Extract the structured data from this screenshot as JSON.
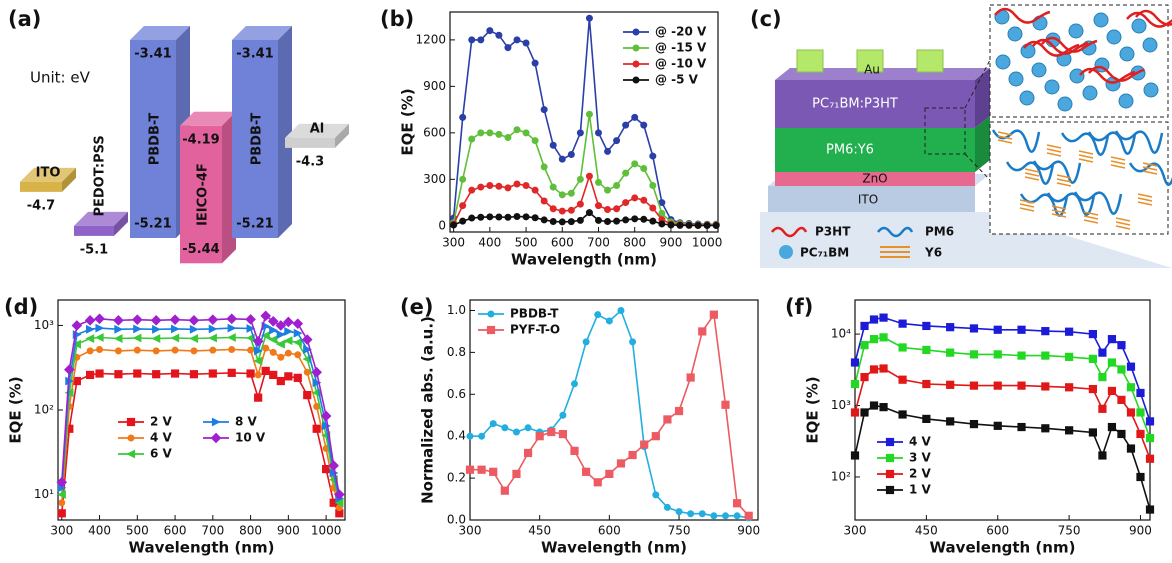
{
  "chart_data": [
    {
      "type": "energy-diagram",
      "panel": "(a)",
      "unit_label": "Unit: eV",
      "layers": [
        {
          "name": "ITO",
          "level": -4.7,
          "color": "#d8b348"
        },
        {
          "name": "PEDOT:PSS",
          "level": -5.1,
          "color": "#9063c8"
        },
        {
          "name": "PBDB-T",
          "lumo": -3.41,
          "homo": -5.21,
          "color": "#6f82d8"
        },
        {
          "name": "IEICO-4F",
          "lumo": -4.19,
          "homo": -5.44,
          "color": "#e2629e"
        },
        {
          "name": "PBDB-T",
          "lumo": -3.41,
          "homo": -5.21,
          "color": "#6f82d8"
        },
        {
          "name": "Al",
          "level": -4.3,
          "color": "#cfcfcf"
        }
      ]
    },
    {
      "type": "line",
      "panel": "(b)",
      "x_label": "Wavelength (nm)",
      "y_label": "EQE (%)",
      "xlim": [
        290,
        1030
      ],
      "xticks": [
        300,
        400,
        500,
        600,
        700,
        800,
        900,
        1000
      ],
      "ylim": [
        -40,
        1380
      ],
      "yticks": [
        0,
        300,
        600,
        900,
        1200
      ],
      "legend": "upper right",
      "x": [
        300,
        325,
        350,
        375,
        400,
        425,
        450,
        475,
        500,
        525,
        550,
        575,
        600,
        625,
        650,
        675,
        700,
        725,
        750,
        775,
        800,
        825,
        850,
        875,
        900,
        925,
        950,
        975,
        1000,
        1025
      ],
      "series": [
        {
          "name": "@ -20 V",
          "color": "#2b3fa8",
          "marker": "circle",
          "values": [
            50,
            700,
            1200,
            1200,
            1260,
            1230,
            1150,
            1200,
            1180,
            1050,
            750,
            520,
            430,
            460,
            600,
            1340,
            600,
            480,
            550,
            650,
            700,
            650,
            450,
            150,
            40,
            20,
            15,
            12,
            10,
            10
          ]
        },
        {
          "name": "@ -15 V",
          "color": "#5fbf3a",
          "marker": "circle",
          "values": [
            20,
            300,
            560,
            600,
            600,
            590,
            570,
            620,
            600,
            550,
            380,
            250,
            200,
            210,
            300,
            720,
            280,
            230,
            260,
            340,
            400,
            370,
            260,
            80,
            25,
            15,
            10,
            8,
            8,
            8
          ]
        },
        {
          "name": "@ -10 V",
          "color": "#e02828",
          "marker": "circle",
          "values": [
            10,
            130,
            230,
            250,
            260,
            255,
            245,
            270,
            260,
            230,
            160,
            110,
            95,
            100,
            140,
            320,
            130,
            105,
            110,
            150,
            180,
            165,
            115,
            40,
            12,
            8,
            6,
            5,
            5,
            5
          ]
        },
        {
          "name": "@ -5 V",
          "color": "#111111",
          "marker": "circle",
          "values": [
            5,
            30,
            50,
            55,
            58,
            57,
            55,
            60,
            58,
            52,
            38,
            28,
            25,
            27,
            35,
            85,
            35,
            28,
            30,
            38,
            45,
            42,
            30,
            12,
            5,
            3,
            3,
            2,
            2,
            2
          ]
        }
      ]
    },
    {
      "type": "device-diagram",
      "panel": "(c)",
      "layers": [
        "Au",
        "PC₇₁BM:P3HT",
        "PM6:Y6",
        "ZnO",
        "ITO"
      ],
      "materials": [
        "P3HT",
        "PM6",
        "PC₇₁BM",
        "Y6"
      ]
    },
    {
      "type": "line",
      "panel": "(d)",
      "x_label": "Wavelength (nm)",
      "y_label": "EQE (%)",
      "log_y": true,
      "xlim": [
        290,
        1050
      ],
      "xticks": [
        300,
        400,
        500,
        600,
        700,
        800,
        900,
        1000
      ],
      "ylim": [
        5,
        2000
      ],
      "yticks": [
        {
          "value": 10,
          "label": "10¹"
        },
        {
          "value": 100,
          "label": "10²"
        },
        {
          "value": 1000,
          "label": "10³"
        }
      ],
      "legend": "center left",
      "x": [
        300,
        320,
        340,
        375,
        400,
        450,
        500,
        550,
        600,
        650,
        700,
        750,
        800,
        820,
        840,
        860,
        880,
        900,
        925,
        950,
        975,
        1000,
        1020,
        1035
      ],
      "series": [
        {
          "name": "2 V",
          "color": "#e3141c",
          "marker": "square",
          "values": [
            6,
            60,
            220,
            260,
            270,
            265,
            270,
            265,
            270,
            265,
            270,
            275,
            270,
            140,
            290,
            260,
            220,
            250,
            240,
            150,
            60,
            20,
            8,
            6
          ]
        },
        {
          "name": "4 V",
          "color": "#f07a1a",
          "marker": "circle",
          "values": [
            8,
            110,
            420,
            500,
            520,
            500,
            510,
            500,
            510,
            500,
            510,
            520,
            510,
            260,
            540,
            480,
            420,
            470,
            450,
            280,
            110,
            35,
            12,
            7
          ]
        },
        {
          "name": "6 V",
          "color": "#39c839",
          "marker": "triangle-left",
          "values": [
            10,
            160,
            600,
            700,
            720,
            700,
            710,
            700,
            710,
            700,
            710,
            720,
            710,
            380,
            760,
            680,
            600,
            660,
            630,
            400,
            160,
            50,
            15,
            8
          ]
        },
        {
          "name": "8 V",
          "color": "#1a7fe0",
          "marker": "triangle-right",
          "values": [
            12,
            220,
            780,
            900,
            930,
            900,
            910,
            900,
            910,
            900,
            910,
            930,
            920,
            500,
            980,
            880,
            780,
            850,
            810,
            520,
            210,
            65,
            18,
            9
          ]
        },
        {
          "name": "10 V",
          "color": "#a020d0",
          "marker": "diamond",
          "values": [
            14,
            300,
            1000,
            1150,
            1200,
            1150,
            1170,
            1150,
            1170,
            1150,
            1170,
            1200,
            1180,
            650,
            1300,
            1120,
            1000,
            1100,
            1050,
            680,
            280,
            85,
            22,
            10
          ]
        }
      ]
    },
    {
      "type": "line",
      "panel": "(e)",
      "x_label": "Wavelength (nm)",
      "y_label": "Normalized abs. (a.u.)",
      "xlim": [
        300,
        920
      ],
      "xticks": [
        300,
        450,
        600,
        750,
        900
      ],
      "ylim": [
        0,
        1.05
      ],
      "yticks": [
        {
          "value": 0,
          "label": "0.0"
        },
        0.2,
        0.4,
        0.6,
        0.8,
        {
          "value": 1,
          "label": "1.0"
        }
      ],
      "legend": "upper left",
      "x": [
        300,
        325,
        350,
        375,
        400,
        425,
        450,
        475,
        500,
        525,
        550,
        575,
        600,
        625,
        650,
        675,
        700,
        725,
        750,
        775,
        800,
        825,
        850,
        875,
        900
      ],
      "series": [
        {
          "name": "PBDB-T",
          "color": "#22aee0",
          "marker": "circle",
          "values": [
            0.4,
            0.4,
            0.46,
            0.44,
            0.42,
            0.44,
            0.42,
            0.43,
            0.5,
            0.65,
            0.85,
            0.98,
            0.95,
            1.0,
            0.85,
            0.35,
            0.12,
            0.06,
            0.04,
            0.03,
            0.03,
            0.02,
            0.02,
            0.02,
            0.01
          ]
        },
        {
          "name": "PYF-T-O",
          "color": "#ec5a62",
          "marker": "square",
          "values": [
            0.24,
            0.24,
            0.23,
            0.14,
            0.22,
            0.32,
            0.4,
            0.42,
            0.41,
            0.33,
            0.23,
            0.18,
            0.22,
            0.27,
            0.31,
            0.36,
            0.4,
            0.48,
            0.52,
            0.68,
            0.9,
            0.98,
            0.55,
            0.08,
            0.02
          ]
        }
      ]
    },
    {
      "type": "line",
      "panel": "(f)",
      "x_label": "Wavelength (nm)",
      "y_label": "EQE (%)",
      "log_y": true,
      "xlim": [
        300,
        920
      ],
      "xticks": [
        300,
        450,
        600,
        750,
        900
      ],
      "ylim": [
        25,
        30000
      ],
      "yticks": [
        {
          "value": 100,
          "label": "10²"
        },
        {
          "value": 1000,
          "label": "10³"
        },
        {
          "value": 10000,
          "label": "10⁴"
        }
      ],
      "legend": "lower left",
      "x": [
        300,
        320,
        340,
        360,
        400,
        450,
        500,
        550,
        600,
        650,
        700,
        750,
        800,
        820,
        840,
        860,
        880,
        900,
        920
      ],
      "series": [
        {
          "name": "4 V",
          "color": "#1c1cd8",
          "marker": "square",
          "values": [
            4000,
            13000,
            16000,
            17000,
            14000,
            13000,
            12500,
            12000,
            11500,
            11500,
            11000,
            10800,
            10000,
            5500,
            8500,
            7000,
            3500,
            1500,
            600
          ]
        },
        {
          "name": "3 V",
          "color": "#22d822",
          "marker": "square",
          "values": [
            2000,
            7000,
            8500,
            9000,
            6500,
            6000,
            5500,
            5200,
            5200,
            5000,
            5000,
            4800,
            4500,
            2500,
            4000,
            3200,
            1800,
            800,
            350
          ]
        },
        {
          "name": "2 V",
          "color": "#e01818",
          "marker": "square",
          "values": [
            800,
            2500,
            3200,
            3300,
            2300,
            2000,
            1950,
            1900,
            1900,
            1900,
            1850,
            1800,
            1700,
            900,
            1600,
            1200,
            800,
            400,
            180
          ]
        },
        {
          "name": "1 V",
          "color": "#111111",
          "marker": "square",
          "values": [
            200,
            800,
            1000,
            950,
            750,
            650,
            600,
            550,
            520,
            500,
            480,
            450,
            420,
            200,
            500,
            400,
            250,
            100,
            35
          ]
        }
      ]
    }
  ]
}
